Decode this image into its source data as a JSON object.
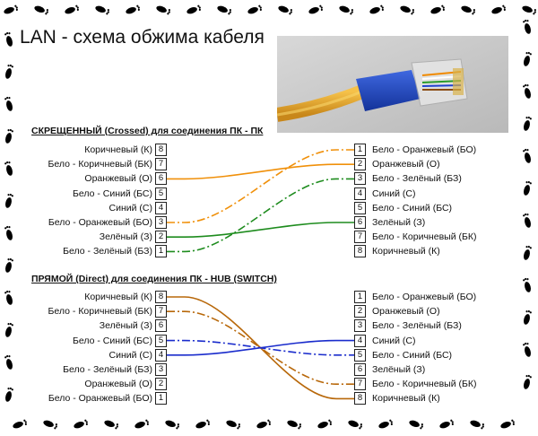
{
  "title": "LAN - схема обжима кабеля",
  "icon": "footprint-icon",
  "crossed": {
    "heading": "СКРЕЩЕННЫЙ (Crossed) для соединения ПК - ПК",
    "left": [
      {
        "pin": "8",
        "label": "Коричневый (К)"
      },
      {
        "pin": "7",
        "label": "Бело - Коричневый (БК)"
      },
      {
        "pin": "6",
        "label": "Оранжевый (О)"
      },
      {
        "pin": "5",
        "label": "Бело - Синий (БС)"
      },
      {
        "pin": "4",
        "label": "Синий (С)"
      },
      {
        "pin": "3",
        "label": "Бело - Оранжевый (БО)"
      },
      {
        "pin": "2",
        "label": "Зелёный (З)"
      },
      {
        "pin": "1",
        "label": "Бело - Зелёный (БЗ)"
      }
    ],
    "right": [
      {
        "pin": "1",
        "label": "Бело - Оранжевый (БО)"
      },
      {
        "pin": "2",
        "label": "Оранжевый (О)"
      },
      {
        "pin": "3",
        "label": "Бело - Зелёный (БЗ)"
      },
      {
        "pin": "4",
        "label": "Синий (С)"
      },
      {
        "pin": "5",
        "label": "Бело - Синий (БС)"
      },
      {
        "pin": "6",
        "label": "Зелёный (З)"
      },
      {
        "pin": "7",
        "label": "Бело - Коричневый (БК)"
      },
      {
        "pin": "8",
        "label": "Коричневый (К)"
      }
    ],
    "wires": [
      {
        "from": "6",
        "to": "2",
        "color": "#f0900a",
        "dashed": false
      },
      {
        "from": "3",
        "to": "1",
        "color": "#f0900a",
        "dashed": true
      },
      {
        "from": "2",
        "to": "6",
        "color": "#1e8c1e",
        "dashed": false
      },
      {
        "from": "1",
        "to": "3",
        "color": "#1e8c1e",
        "dashed": true
      }
    ]
  },
  "direct": {
    "heading": "ПРЯМОЙ (Direct) для соединения ПК - HUB (SWITCH)",
    "left": [
      {
        "pin": "8",
        "label": "Коричневый (К)"
      },
      {
        "pin": "7",
        "label": "Бело - Коричневый (БК)"
      },
      {
        "pin": "6",
        "label": "Зелёный (З)"
      },
      {
        "pin": "5",
        "label": "Бело - Синий (БС)"
      },
      {
        "pin": "4",
        "label": "Синий (С)"
      },
      {
        "pin": "3",
        "label": "Бело - Зелёный (БЗ)"
      },
      {
        "pin": "2",
        "label": "Оранжевый (О)"
      },
      {
        "pin": "1",
        "label": "Бело - Оранжевый (БО)"
      }
    ],
    "right": [
      {
        "pin": "1",
        "label": "Бело - Оранжевый (БО)"
      },
      {
        "pin": "2",
        "label": "Оранжевый (О)"
      },
      {
        "pin": "3",
        "label": "Бело - Зелёный (БЗ)"
      },
      {
        "pin": "4",
        "label": "Синий (С)"
      },
      {
        "pin": "5",
        "label": "Бело - Синий (БС)"
      },
      {
        "pin": "6",
        "label": "Зелёный (З)"
      },
      {
        "pin": "7",
        "label": "Бело - Коричневый (БК)"
      },
      {
        "pin": "8",
        "label": "Коричневый (К)"
      }
    ],
    "wires": [
      {
        "from": "8",
        "to": "8",
        "color": "#b8680a",
        "dashed": false
      },
      {
        "from": "7",
        "to": "7",
        "color": "#b8680a",
        "dashed": true
      },
      {
        "from": "4",
        "to": "4",
        "color": "#1a2ccc",
        "dashed": false
      },
      {
        "from": "5",
        "to": "5",
        "color": "#1a2ccc",
        "dashed": true
      }
    ]
  }
}
